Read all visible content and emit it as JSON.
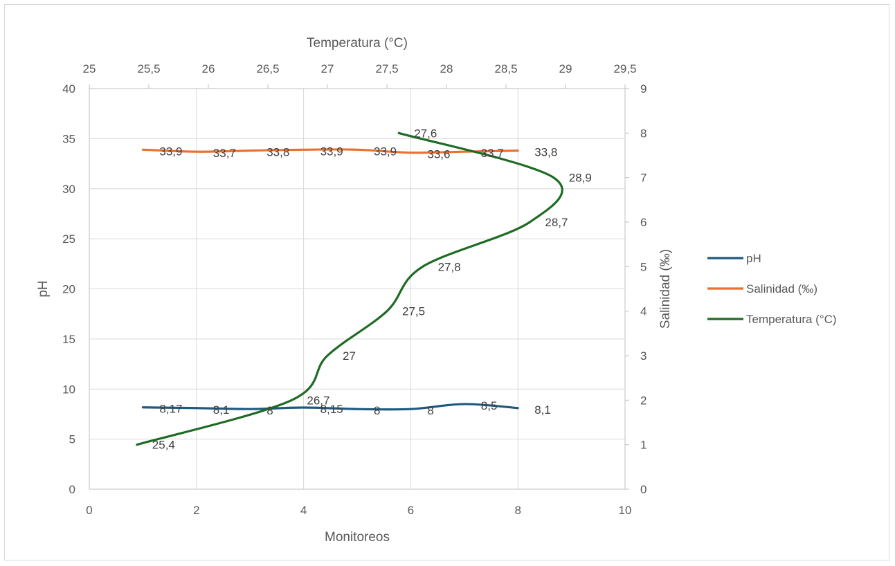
{
  "chart_data": {
    "type": "scatter",
    "x_axis": {
      "label": "Monitoreos",
      "min": 0,
      "max": 10,
      "step": 2,
      "ticks": [
        "0",
        "2",
        "4",
        "6",
        "8",
        "10"
      ]
    },
    "y_axis_left": {
      "label": "pH",
      "min": 0,
      "max": 40,
      "step": 5,
      "ticks": [
        "0",
        "5",
        "10",
        "15",
        "20",
        "25",
        "30",
        "35",
        "40"
      ]
    },
    "y_axis_right": {
      "label": "Salinidad (‰)",
      "min": 0,
      "max": 9,
      "step": 1,
      "ticks": [
        "0",
        "1",
        "2",
        "3",
        "4",
        "5",
        "6",
        "7",
        "8",
        "9"
      ]
    },
    "x_axis_top": {
      "label": "Temperatura (°C)",
      "min": 25,
      "max": 29.5,
      "step": 0.5,
      "ticks": [
        "25",
        "25,5",
        "26",
        "26,5",
        "27",
        "27,5",
        "28",
        "28,5",
        "29",
        "29,5"
      ]
    },
    "grid": true,
    "legend_position": "right",
    "series": [
      {
        "name": "pH",
        "color": "#1f5a7e",
        "x": [
          1,
          2,
          3,
          4,
          5,
          6,
          7,
          8
        ],
        "y": [
          8.17,
          8.1,
          8,
          8.15,
          8,
          8,
          8.5,
          8.1
        ],
        "labels": [
          "8,17",
          "8,1",
          "8",
          "8,15",
          "8",
          "8",
          "8,5",
          "8,1"
        ]
      },
      {
        "name": "Salinidad (‰)",
        "color": "#e97132",
        "x": [
          1,
          2,
          3,
          4,
          5,
          6,
          7,
          8
        ],
        "y": [
          33.9,
          33.7,
          33.8,
          33.9,
          33.9,
          33.6,
          33.7,
          33.8
        ],
        "labels": [
          "33,9",
          "33,7",
          "33,8",
          "33,9",
          "33,9",
          "33,6",
          "33,7",
          "33,8"
        ]
      },
      {
        "name": "Temperatura (°C)",
        "color": "#1e6b24",
        "x": [
          25.4,
          26.7,
          27,
          27.5,
          27.8,
          28.7,
          28.9,
          27.6
        ],
        "y": [
          1,
          2,
          3,
          4,
          5,
          6,
          7,
          8
        ],
        "labels": [
          "25,4",
          "26,7",
          "27",
          "27,5",
          "27,8",
          "28,7",
          "28,9",
          "27,6"
        ]
      }
    ]
  }
}
